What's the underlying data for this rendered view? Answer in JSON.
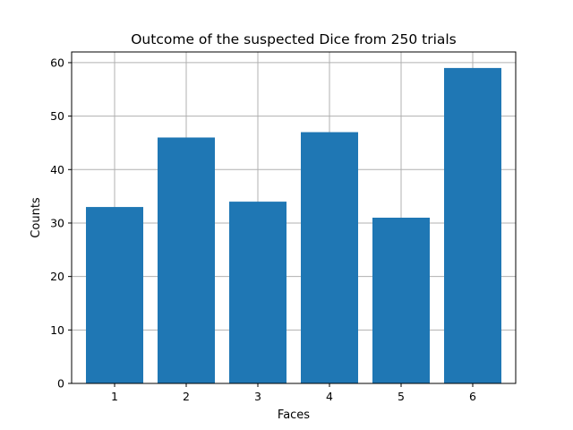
{
  "chart_data": {
    "type": "bar",
    "title": "Outcome of the suspected Dice from 250 trials",
    "xlabel": "Faces",
    "ylabel": "Counts",
    "categories": [
      "1",
      "2",
      "3",
      "4",
      "5",
      "6"
    ],
    "values": [
      33,
      46,
      34,
      47,
      31,
      59
    ],
    "ylim": [
      0,
      62
    ],
    "yticks": [
      0,
      10,
      20,
      30,
      40,
      50,
      60
    ],
    "grid": true,
    "bar_color": "#1f77b4"
  }
}
